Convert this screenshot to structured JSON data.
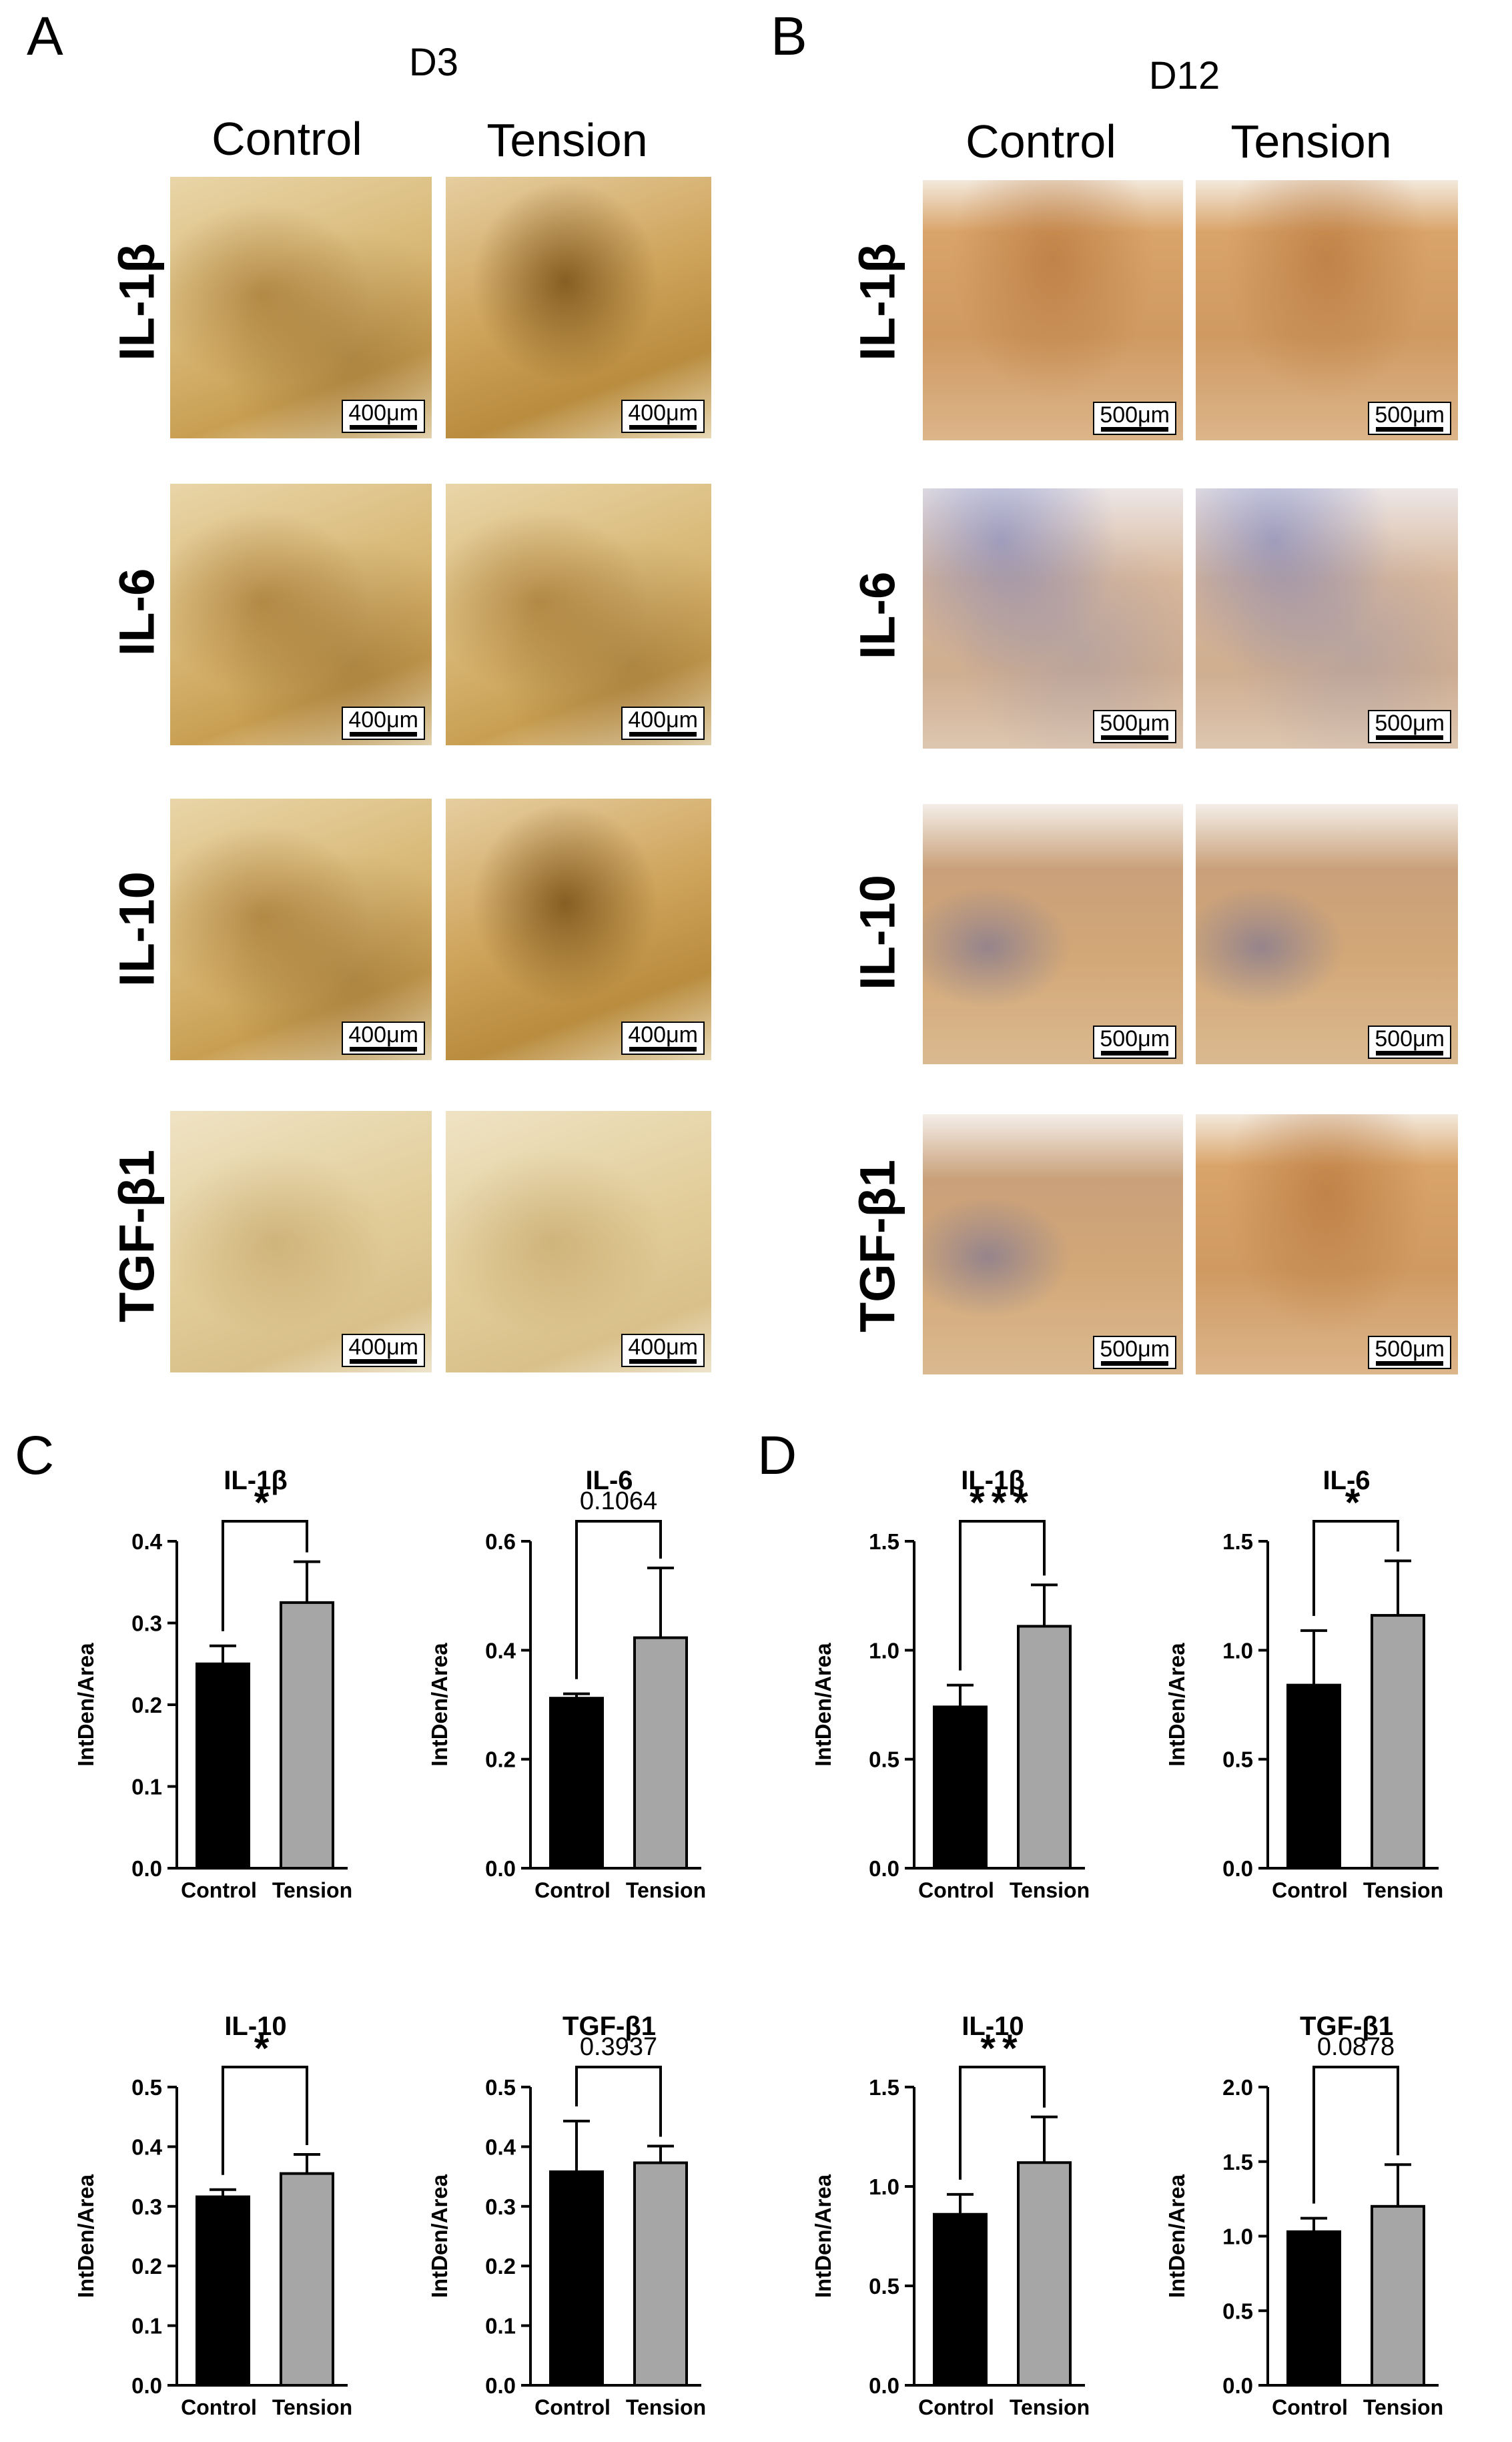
{
  "panels": {
    "a": {
      "letter": "A",
      "day": "D3",
      "col_control": "Control",
      "col_tension": "Tension",
      "scale": "400μm"
    },
    "b": {
      "letter": "B",
      "day": "D12",
      "col_control": "Control",
      "col_tension": "Tension",
      "scale": "500μm"
    },
    "c": {
      "letter": "C"
    },
    "d": {
      "letter": "D"
    }
  },
  "rows": [
    "IL-1β",
    "IL-6",
    "IL-10",
    "TGF-β1"
  ],
  "chart_data": [
    {
      "type": "bar",
      "panel": "C",
      "title": "IL-1β",
      "categories": [
        "Control",
        "Tension"
      ],
      "values": [
        0.25,
        0.325
      ],
      "errors": [
        0.022,
        0.05
      ],
      "ylabel": "IntDen/Area",
      "ylim": [
        0,
        0.4
      ],
      "ticks": [
        "0.0",
        "0.1",
        "0.2",
        "0.3",
        "0.4"
      ],
      "annotation": "*",
      "colors": [
        "#000000",
        "#a6a6a6"
      ]
    },
    {
      "type": "bar",
      "panel": "C",
      "title": "IL-6",
      "categories": [
        "Control",
        "Tension"
      ],
      "values": [
        0.312,
        0.423
      ],
      "errors": [
        0.008,
        0.128
      ],
      "ylabel": "IntDen/Area",
      "ylim": [
        0,
        0.6
      ],
      "ticks": [
        "0.0",
        "0.2",
        "0.4",
        "0.6"
      ],
      "annotation": "0.1064",
      "colors": [
        "#000000",
        "#a6a6a6"
      ]
    },
    {
      "type": "bar",
      "panel": "C",
      "title": "IL-10",
      "categories": [
        "Control",
        "Tension"
      ],
      "values": [
        0.316,
        0.355
      ],
      "errors": [
        0.012,
        0.032
      ],
      "ylabel": "IntDen/Area",
      "ylim": [
        0,
        0.5
      ],
      "ticks": [
        "0.0",
        "0.1",
        "0.2",
        "0.3",
        "0.4",
        "0.5"
      ],
      "annotation": "*",
      "colors": [
        "#000000",
        "#a6a6a6"
      ]
    },
    {
      "type": "bar",
      "panel": "C",
      "title": "TGF-β1",
      "categories": [
        "Control",
        "Tension"
      ],
      "values": [
        0.358,
        0.373
      ],
      "errors": [
        0.085,
        0.028
      ],
      "ylabel": "IntDen/Area",
      "ylim": [
        0,
        0.5
      ],
      "ticks": [
        "0.0",
        "0.1",
        "0.2",
        "0.3",
        "0.4",
        "0.5"
      ],
      "annotation": "0.3937",
      "colors": [
        "#000000",
        "#a6a6a6"
      ]
    },
    {
      "type": "bar",
      "panel": "D",
      "title": "IL-1β",
      "categories": [
        "Control",
        "Tension"
      ],
      "values": [
        0.74,
        1.11
      ],
      "errors": [
        0.1,
        0.19
      ],
      "ylabel": "IntDen/Area",
      "ylim": [
        0,
        1.5
      ],
      "ticks": [
        "0.0",
        "0.5",
        "1.0",
        "1.5"
      ],
      "annotation": "***",
      "colors": [
        "#000000",
        "#a6a6a6"
      ]
    },
    {
      "type": "bar",
      "panel": "D",
      "title": "IL-6",
      "categories": [
        "Control",
        "Tension"
      ],
      "values": [
        0.84,
        1.16
      ],
      "errors": [
        0.25,
        0.25
      ],
      "ylabel": "IntDen/Area",
      "ylim": [
        0,
        1.5
      ],
      "ticks": [
        "0.0",
        "0.5",
        "1.0",
        "1.5"
      ],
      "annotation": "*",
      "colors": [
        "#000000",
        "#a6a6a6"
      ]
    },
    {
      "type": "bar",
      "panel": "D",
      "title": "IL-10",
      "categories": [
        "Control",
        "Tension"
      ],
      "values": [
        0.86,
        1.12
      ],
      "errors": [
        0.1,
        0.23
      ],
      "ylabel": "IntDen/Area",
      "ylim": [
        0,
        1.5
      ],
      "ticks": [
        "0.0",
        "0.5",
        "1.0",
        "1.5"
      ],
      "annotation": "**",
      "colors": [
        "#000000",
        "#a6a6a6"
      ]
    },
    {
      "type": "bar",
      "panel": "D",
      "title": "TGF-β1",
      "categories": [
        "Control",
        "Tension"
      ],
      "values": [
        1.03,
        1.2
      ],
      "errors": [
        0.09,
        0.28
      ],
      "ylabel": "IntDen/Area",
      "ylim": [
        0,
        2.0
      ],
      "ticks": [
        "0.0",
        "0.5",
        "1.0",
        "1.5",
        "2.0"
      ],
      "annotation": "0.0878",
      "colors": [
        "#000000",
        "#a6a6a6"
      ]
    }
  ]
}
